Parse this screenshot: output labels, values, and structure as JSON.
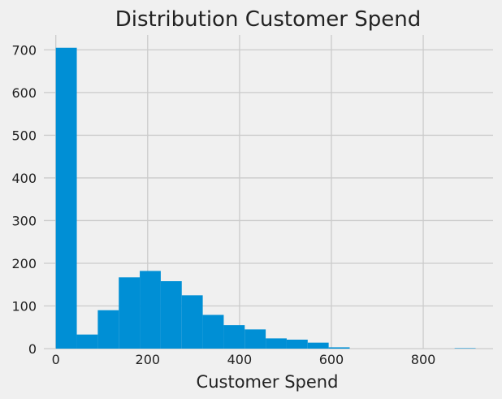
{
  "chart_data": {
    "type": "bar",
    "title": "Distribution Customer Spend",
    "xlabel": "Customer Spend",
    "ylabel": "",
    "bin_edges": [
      0,
      45.7,
      91.4,
      137.1,
      182.8,
      228.5,
      274.2,
      319.9,
      365.6,
      411.3,
      457.0,
      502.7,
      548.4,
      594.1,
      639.8,
      685.5,
      731.2,
      776.9,
      822.6,
      868.3,
      914.0
    ],
    "values": [
      705,
      33,
      90,
      167,
      182,
      158,
      125,
      79,
      55,
      45,
      24,
      21,
      14,
      3,
      0,
      0,
      0,
      0,
      0,
      1
    ],
    "xlim": [
      -26,
      952
    ],
    "ylim": [
      0,
      735
    ],
    "xticks": [
      0,
      200,
      400,
      600,
      800
    ],
    "yticks": [
      0,
      100,
      200,
      300,
      400,
      500,
      600,
      700
    ],
    "xtick_labels": [
      "0",
      "200",
      "400",
      "600",
      "800"
    ],
    "ytick_labels": [
      "0",
      "100",
      "200",
      "300",
      "400",
      "500",
      "600",
      "700"
    ],
    "grid": true,
    "bar_color": "#008fd5",
    "background_color": "#f0f0f0",
    "grid_color": "#cbcbcb"
  }
}
